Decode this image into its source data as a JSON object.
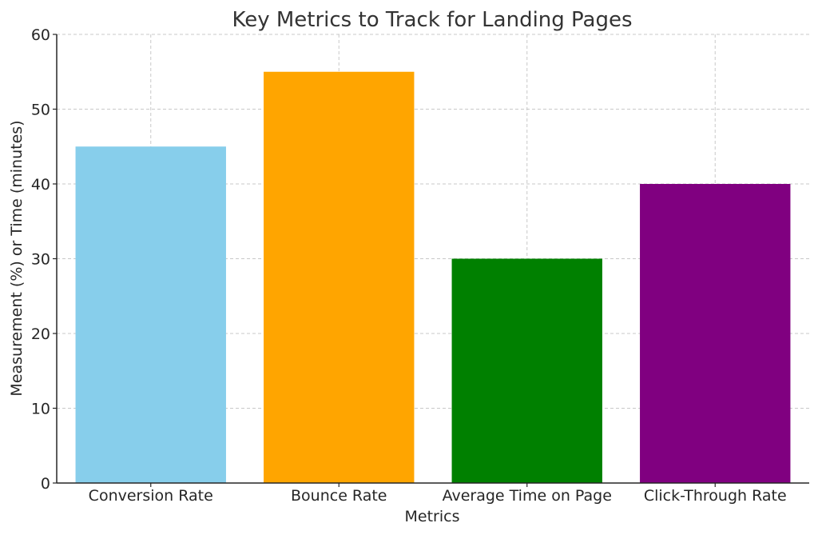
{
  "chart_data": {
    "type": "bar",
    "title": "Key Metrics to Track for Landing Pages",
    "xlabel": "Metrics",
    "ylabel": "Measurement (%) or Time (minutes)",
    "categories": [
      "Conversion Rate",
      "Bounce Rate",
      "Average Time on Page",
      "Click-Through Rate"
    ],
    "values": [
      45,
      55,
      30,
      40
    ],
    "colors": [
      "#87CEEB",
      "#FFA500",
      "#008000",
      "#800080"
    ],
    "ylim": [
      0,
      60
    ],
    "yticks": [
      "0",
      "10",
      "20",
      "30",
      "40",
      "50",
      "60"
    ],
    "grid": true
  }
}
